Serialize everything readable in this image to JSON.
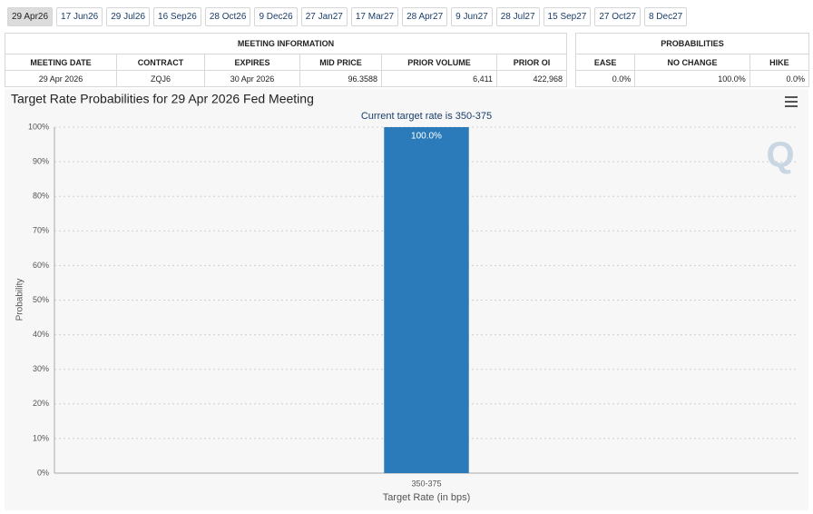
{
  "tabs": [
    "29 Apr26",
    "17 Jun26",
    "29 Jul26",
    "16 Sep26",
    "28 Oct26",
    "9 Dec26",
    "27 Jan27",
    "17 Mar27",
    "28 Apr27",
    "9 Jun27",
    "28 Jul27",
    "15 Sep27",
    "27 Oct27",
    "8 Dec27"
  ],
  "meeting_table": {
    "title": "MEETING INFORMATION",
    "columns": [
      "MEETING DATE",
      "CONTRACT",
      "EXPIRES",
      "MID PRICE",
      "PRIOR VOLUME",
      "PRIOR OI"
    ],
    "rows": [
      [
        "29 Apr 2026",
        "ZQJ6",
        "30 Apr 2026",
        "96.3588",
        "6,411",
        "422,968"
      ]
    ]
  },
  "prob_table": {
    "title": "PROBABILITIES",
    "columns": [
      "EASE",
      "NO CHANGE",
      "HIKE"
    ],
    "rows": [
      [
        "0.0%",
        "100.0%",
        "0.0%"
      ]
    ]
  },
  "chart_data": {
    "type": "bar",
    "title": "Target Rate Probabilities for 29 Apr 2026 Fed Meeting",
    "subtitle": "Current target rate is 350-375",
    "x_label": "Target Rate (in bps)",
    "y_label": "Probability",
    "categories": [
      "350-375"
    ],
    "values": [
      100
    ],
    "value_labels": [
      "100.0%"
    ],
    "color": "#2b7bba",
    "ylim": [
      0,
      100
    ],
    "yticks": [
      {
        "value": 0,
        "label": "0%"
      },
      {
        "value": 10,
        "label": "10%"
      },
      {
        "value": 20,
        "label": "20%"
      },
      {
        "value": 30,
        "label": "30%"
      },
      {
        "value": 40,
        "label": "40%"
      },
      {
        "value": 50,
        "label": "50%"
      },
      {
        "value": 60,
        "label": "60%"
      },
      {
        "value": 70,
        "label": "70%"
      },
      {
        "value": 80,
        "label": "80%"
      },
      {
        "value": 90,
        "label": "90%"
      },
      {
        "value": 100,
        "label": "100%"
      }
    ],
    "grid": true
  }
}
